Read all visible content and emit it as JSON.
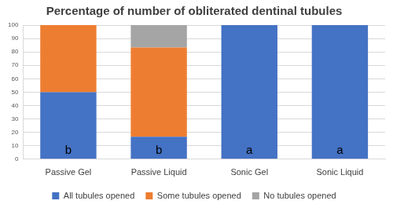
{
  "chart_data": {
    "type": "bar",
    "title": "Percentage of number of obliterated dentinal tubules",
    "categories": [
      "Passive Gel",
      "Passive Liquid",
      "Sonic Gel",
      "Sonic Liquid"
    ],
    "series": [
      {
        "name": "All tubules opened",
        "color": "#4472c4",
        "values": [
          50,
          16.7,
          100,
          100
        ]
      },
      {
        "name": "Some tubules opened",
        "color": "#ed7d31",
        "values": [
          50,
          66.6,
          0,
          0
        ]
      },
      {
        "name": "No tubules opened",
        "color": "#a5a5a5",
        "values": [
          0,
          16.7,
          0,
          0
        ]
      }
    ],
    "annotations": [
      "b",
      "b",
      "a",
      "a"
    ],
    "ylim": [
      0,
      100
    ],
    "yticks": [
      0,
      10,
      20,
      30,
      40,
      50,
      60,
      70,
      80,
      90,
      100
    ],
    "stacked": true,
    "grid": true,
    "legend": "bottom"
  }
}
